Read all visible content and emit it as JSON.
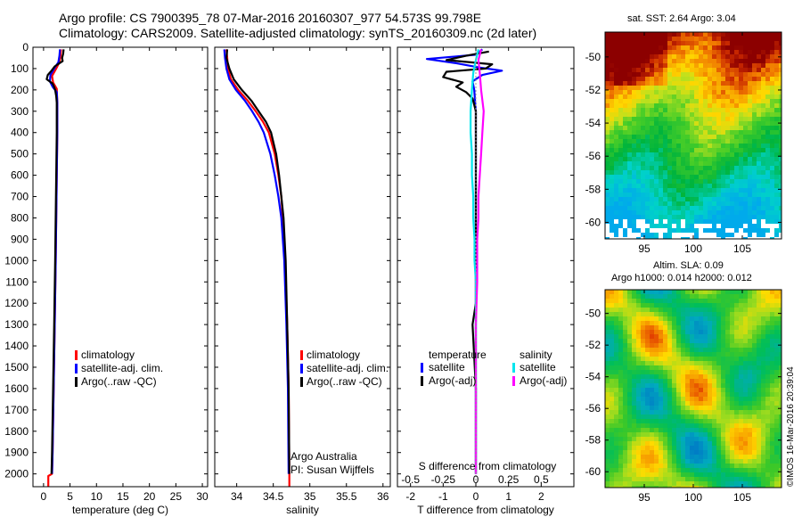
{
  "header": {
    "line1": "Argo profile: CS 7900395_78 07-Mar-2016 20160307_977 54.573S 99.798E",
    "line2": "Climatology: CARS2009. Satellite-adjusted climatology: synTS_20160309.nc (2d later)"
  },
  "colors": {
    "climatology": "#ff0000",
    "satellite_adj": "#0000ff",
    "argo": "#000000",
    "salinity_satellite": "#00e5ee",
    "salinity_argo": "#ff00ff"
  },
  "depth_ticks": [
    0,
    100,
    200,
    300,
    400,
    500,
    600,
    700,
    800,
    900,
    1000,
    1100,
    1200,
    1300,
    1400,
    1500,
    1600,
    1700,
    1800,
    1900,
    2000
  ],
  "chart_data": [
    {
      "type": "line",
      "xlabel": "temperature (deg C)",
      "ylabel": "",
      "xlim": [
        -2,
        31
      ],
      "ylim": [
        2060,
        0
      ],
      "xticks": [
        0,
        5,
        10,
        15,
        20,
        25,
        30
      ],
      "legend_position": "lower-center",
      "series": [
        {
          "name": "climatology",
          "color": "#ff0000",
          "points": [
            [
              3.3,
              10
            ],
            [
              3.2,
              40
            ],
            [
              3.0,
              70
            ],
            [
              2.4,
              100
            ],
            [
              1.6,
              135
            ],
            [
              1.8,
              165
            ],
            [
              2.5,
              195
            ],
            [
              2.6,
              260
            ],
            [
              2.6,
              400
            ],
            [
              2.5,
              600
            ],
            [
              2.4,
              800
            ],
            [
              2.3,
              1000
            ],
            [
              2.1,
              1300
            ],
            [
              1.9,
              1600
            ],
            [
              1.7,
              1900
            ],
            [
              1.6,
              2000
            ],
            [
              0.9,
              2010
            ],
            [
              0.9,
              2060
            ]
          ]
        },
        {
          "name": "satellite-adj. clim.",
          "color": "#0000ff",
          "points": [
            [
              3.1,
              10
            ],
            [
              3.0,
              40
            ],
            [
              2.8,
              70
            ],
            [
              2.0,
              100
            ],
            [
              1.3,
              130
            ],
            [
              1.2,
              160
            ],
            [
              1.7,
              185
            ],
            [
              2.5,
              210
            ],
            [
              2.6,
              260
            ],
            [
              2.6,
              400
            ],
            [
              2.5,
              600
            ],
            [
              2.4,
              800
            ],
            [
              2.3,
              1000
            ],
            [
              2.1,
              1300
            ],
            [
              1.9,
              1600
            ],
            [
              1.7,
              1900
            ],
            [
              1.6,
              2000
            ]
          ]
        },
        {
          "name": "Argo(..raw -QC)",
          "color": "#000000",
          "points": [
            [
              3.8,
              10
            ],
            [
              3.7,
              30
            ],
            [
              3.5,
              50
            ],
            [
              3.6,
              65
            ],
            [
              2.1,
              90
            ],
            [
              1.5,
              110
            ],
            [
              0.8,
              130
            ],
            [
              0.6,
              150
            ],
            [
              1.7,
              170
            ],
            [
              1.9,
              180
            ],
            [
              2.2,
              200
            ],
            [
              2.4,
              230
            ],
            [
              2.5,
              260
            ],
            [
              2.5,
              400
            ],
            [
              2.4,
              600
            ],
            [
              2.3,
              800
            ],
            [
              2.2,
              1000
            ],
            [
              2.0,
              1300
            ],
            [
              1.8,
              1600
            ],
            [
              1.6,
              1900
            ],
            [
              1.5,
              2000
            ]
          ]
        }
      ]
    },
    {
      "type": "line",
      "xlabel": "salinity",
      "ylabel": "",
      "xlim": [
        33.7,
        36.1
      ],
      "ylim": [
        2060,
        0
      ],
      "xticks": [
        34,
        34.5,
        35,
        35.5,
        36
      ],
      "legend_position": "lower-right",
      "annotation_lines": [
        "Argo Australia",
        "PI: Susan Wijffels"
      ],
      "series": [
        {
          "name": "climatology",
          "color": "#ff0000",
          "points": [
            [
              33.86,
              10
            ],
            [
              33.87,
              50
            ],
            [
              33.88,
              100
            ],
            [
              33.92,
              150
            ],
            [
              34.02,
              200
            ],
            [
              34.15,
              250
            ],
            [
              34.26,
              300
            ],
            [
              34.36,
              350
            ],
            [
              34.44,
              400
            ],
            [
              34.52,
              500
            ],
            [
              34.57,
              600
            ],
            [
              34.61,
              700
            ],
            [
              34.63,
              800
            ],
            [
              34.66,
              1000
            ],
            [
              34.69,
              1300
            ],
            [
              34.71,
              1600
            ],
            [
              34.72,
              2000
            ],
            [
              34.72,
              2060
            ]
          ]
        },
        {
          "name": "satellite-adj. clim.",
          "color": "#0000ff",
          "points": [
            [
              33.83,
              10
            ],
            [
              33.84,
              50
            ],
            [
              33.86,
              100
            ],
            [
              33.9,
              150
            ],
            [
              33.99,
              200
            ],
            [
              34.11,
              250
            ],
            [
              34.21,
              300
            ],
            [
              34.3,
              350
            ],
            [
              34.37,
              400
            ],
            [
              34.46,
              500
            ],
            [
              34.52,
              600
            ],
            [
              34.57,
              700
            ],
            [
              34.61,
              800
            ],
            [
              34.65,
              1000
            ],
            [
              34.68,
              1300
            ],
            [
              34.7,
              1600
            ],
            [
              34.71,
              2000
            ]
          ]
        },
        {
          "name": "Argo(..raw -QC)",
          "color": "#000000",
          "points": [
            [
              33.87,
              10
            ],
            [
              33.86,
              50
            ],
            [
              33.9,
              100
            ],
            [
              33.96,
              150
            ],
            [
              34.07,
              200
            ],
            [
              34.2,
              250
            ],
            [
              34.3,
              300
            ],
            [
              34.4,
              350
            ],
            [
              34.47,
              400
            ],
            [
              34.54,
              500
            ],
            [
              34.58,
              600
            ],
            [
              34.61,
              700
            ],
            [
              34.64,
              800
            ],
            [
              34.67,
              1000
            ],
            [
              34.69,
              1300
            ],
            [
              34.71,
              1600
            ],
            [
              34.72,
              2000
            ]
          ]
        }
      ]
    },
    {
      "type": "line",
      "xlabel": "T difference from climatology",
      "x2label": "S difference from climatology",
      "ylabel": "",
      "xlim": [
        -2.4,
        3.0
      ],
      "ylim": [
        2060,
        0
      ],
      "xticks": [
        -2,
        -1,
        0,
        1,
        2
      ],
      "x2lim": [
        -0.6,
        0.75
      ],
      "x2ticks": [
        -0.5,
        -0.25,
        0,
        0.25,
        0.5
      ],
      "legend": {
        "temperature_title": "temperature",
        "salinity_title": "salinity",
        "temperature": [
          "satellite",
          "Argo(-adj)"
        ],
        "salinity": [
          "satellite",
          "Argo(-adj)"
        ]
      },
      "series": [
        {
          "name": "temperature satellite",
          "axis": "T",
          "color": "#0000ff",
          "points": [
            [
              0.2,
              10
            ],
            [
              0.0,
              35
            ],
            [
              -1.5,
              55
            ],
            [
              -0.6,
              75
            ],
            [
              0.1,
              95
            ],
            [
              0.8,
              110
            ],
            [
              0.2,
              130
            ],
            [
              -0.1,
              160
            ],
            [
              -0.05,
              200
            ],
            [
              0.0,
              300
            ],
            [
              0.0,
              600
            ],
            [
              0.0,
              1000
            ],
            [
              0.0,
              1500
            ],
            [
              0.0,
              2000
            ]
          ]
        },
        {
          "name": "temperature Argo(-adj)",
          "axis": "T",
          "color": "#000000",
          "points": [
            [
              0.4,
              20
            ],
            [
              -0.3,
              40
            ],
            [
              -0.9,
              60
            ],
            [
              0.5,
              80
            ],
            [
              0.3,
              100
            ],
            [
              -0.9,
              115
            ],
            [
              -1.0,
              140
            ],
            [
              -0.4,
              165
            ],
            [
              -0.6,
              185
            ],
            [
              -0.3,
              210
            ],
            [
              -0.1,
              240
            ],
            [
              0.0,
              300
            ],
            [
              0.0,
              500
            ],
            [
              0.0,
              800
            ],
            [
              0.0,
              1200
            ],
            [
              -0.1,
              1300
            ],
            [
              0.0,
              1600
            ],
            [
              0.0,
              2000
            ]
          ]
        },
        {
          "name": "salinity satellite",
          "axis": "S",
          "color": "#00e5ee",
          "points": [
            [
              0.02,
              10
            ],
            [
              0.0,
              60
            ],
            [
              -0.02,
              120
            ],
            [
              -0.03,
              200
            ],
            [
              -0.04,
              300
            ],
            [
              -0.04,
              400
            ],
            [
              -0.03,
              500
            ],
            [
              -0.03,
              600
            ],
            [
              -0.02,
              700
            ],
            [
              -0.02,
              800
            ],
            [
              -0.01,
              900
            ],
            [
              -0.01,
              1000
            ],
            [
              0.0,
              1100
            ],
            [
              0.0,
              1300
            ],
            [
              0.0,
              1600
            ],
            [
              0.0,
              2000
            ]
          ]
        },
        {
          "name": "salinity Argo(-adj)",
          "axis": "S",
          "color": "#ff00ff",
          "points": [
            [
              0.04,
              10
            ],
            [
              0.02,
              60
            ],
            [
              0.03,
              120
            ],
            [
              0.04,
              200
            ],
            [
              0.06,
              300
            ],
            [
              0.05,
              400
            ],
            [
              0.04,
              500
            ],
            [
              0.03,
              600
            ],
            [
              0.02,
              700
            ],
            [
              0.02,
              800
            ],
            [
              0.01,
              900
            ],
            [
              0.01,
              1000
            ],
            [
              0.01,
              1100
            ],
            [
              0.0,
              1300
            ],
            [
              0.0,
              1600
            ],
            [
              0.0,
              2000
            ]
          ]
        }
      ]
    },
    {
      "type": "heatmap",
      "title": "sat. SST: 2.64  Argo: 3.04",
      "xlim": [
        91,
        109
      ],
      "ylim": [
        -61,
        -48.5
      ],
      "xticks": [
        95,
        100,
        105
      ],
      "yticks": [
        -50,
        -52,
        -54,
        -56,
        -58,
        -60
      ],
      "xticklabels": [
        "95",
        "100",
        "105"
      ],
      "yticklabels": [
        "-50",
        "-52",
        "-54",
        "-56",
        "-58",
        "-60"
      ],
      "colorscale": "sst",
      "value_range": [
        1.0,
        9.0
      ]
    },
    {
      "type": "heatmap",
      "title_lines": [
        "Altim. SLA: 0.09",
        "Argo h1000: 0.014 h2000: 0.012"
      ],
      "xlim": [
        91,
        109
      ],
      "ylim": [
        -61,
        -48.5
      ],
      "xticks": [
        95,
        100,
        105
      ],
      "yticks": [
        -50,
        -52,
        -54,
        -56,
        -58,
        -60
      ],
      "xticklabels": [
        "95",
        "100",
        "105"
      ],
      "yticklabels": [
        "-50",
        "-52",
        "-54",
        "-56",
        "-58",
        "-60"
      ],
      "colorscale": "sla",
      "value_range": [
        -0.5,
        0.5
      ]
    }
  ],
  "credit": "©IMOS 16-Mar-2016 20:39:04"
}
